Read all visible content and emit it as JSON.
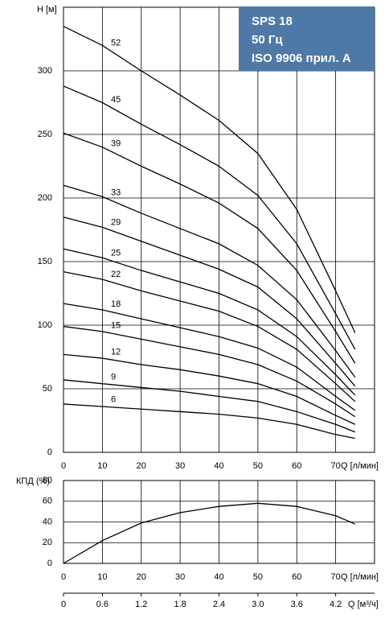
{
  "chart_data": [
    {
      "type": "line",
      "ylabel": "H [м]",
      "xlabel": "Q [л/мин]",
      "annotation": [
        "SPS 18",
        "50 Гц",
        "ISO 9906 прил. A"
      ],
      "x": [
        0,
        10,
        20,
        30,
        40,
        50,
        60,
        70,
        75
      ],
      "xlim": [
        0,
        80
      ],
      "xticks": [
        0,
        10,
        20,
        30,
        40,
        50,
        60,
        70
      ],
      "ylim": [
        0,
        350
      ],
      "yticks": [
        0,
        50,
        100,
        150,
        200,
        250,
        300
      ],
      "grid": true,
      "color": "#000000",
      "series": [
        {
          "name": "52",
          "values": [
            335,
            320,
            300,
            281,
            261,
            235,
            191,
            127,
            94
          ]
        },
        {
          "name": "45",
          "values": [
            288,
            275,
            258,
            242,
            225,
            202,
            164,
            109,
            81
          ]
        },
        {
          "name": "39",
          "values": [
            251,
            240,
            225,
            211,
            196,
            176,
            143,
            95,
            70
          ]
        },
        {
          "name": "33",
          "values": [
            210,
            201,
            188,
            176,
            164,
            147,
            120,
            80,
            59
          ]
        },
        {
          "name": "29",
          "values": [
            185,
            177,
            166,
            155,
            144,
            130,
            105,
            70,
            52
          ]
        },
        {
          "name": "25",
          "values": [
            160,
            153,
            143,
            134,
            125,
            112,
            91,
            61,
            45
          ]
        },
        {
          "name": "22",
          "values": [
            142,
            136,
            127,
            119,
            111,
            99,
            81,
            54,
            40
          ]
        },
        {
          "name": "18",
          "values": [
            117,
            112,
            105,
            98,
            91,
            82,
            67,
            44,
            33
          ]
        },
        {
          "name": "15",
          "values": [
            99,
            95,
            89,
            83,
            77,
            69,
            56,
            38,
            28
          ]
        },
        {
          "name": "12",
          "values": [
            77,
            74,
            69,
            65,
            60,
            54,
            44,
            29,
            22
          ]
        },
        {
          "name": "9",
          "values": [
            57,
            54,
            51,
            48,
            44,
            40,
            32,
            22,
            16
          ]
        },
        {
          "name": "6",
          "values": [
            38,
            36,
            34,
            32,
            30,
            27,
            22,
            14,
            11
          ]
        }
      ]
    },
    {
      "type": "line",
      "ylabel": "КПД (%)",
      "xlabel": "Q [л/мин]",
      "x2label": "Q [м³/ч]",
      "x": [
        0,
        10,
        20,
        30,
        40,
        50,
        60,
        70,
        75
      ],
      "xlim": [
        0,
        80
      ],
      "xticks": [
        0,
        10,
        20,
        30,
        40,
        50,
        60,
        70
      ],
      "x2lim": [
        0,
        4.8
      ],
      "x2ticks": [
        0,
        0.6,
        1.2,
        1.8,
        2.4,
        {
          "value": 3,
          "label": "3.0"
        },
        3.6,
        4.2
      ],
      "ylim": [
        0,
        80
      ],
      "yticks": [
        0,
        20,
        40,
        60,
        80
      ],
      "grid": true,
      "color": "#000000",
      "series": [
        {
          "values": [
            0,
            22,
            39,
            49,
            55,
            58,
            55,
            46,
            38
          ]
        }
      ]
    }
  ]
}
